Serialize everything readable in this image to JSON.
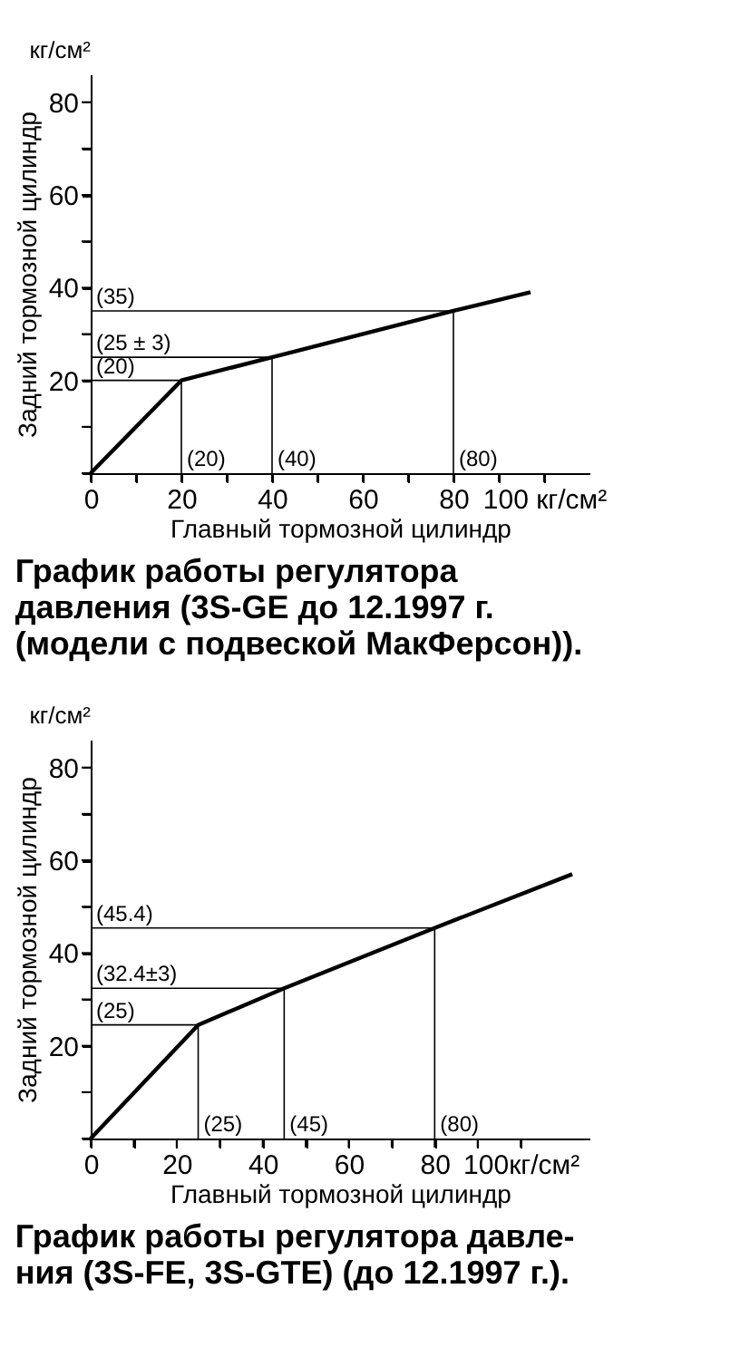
{
  "chart_data": [
    {
      "type": "line",
      "title": "График работы регулятора\nдавления (3S-GE до 12.1997 г.\n(модели с подвеской МакФерсон)).",
      "xlabel": "Главный тормозной цилиндр",
      "ylabel": "Задний тормозной цилиндр",
      "x": [
        0,
        20,
        40,
        80,
        97
      ],
      "series": [
        {
          "color": "#000000",
          "values": [
            0,
            20,
            25,
            35,
            39
          ]
        },
        {
          "color": "#000000",
          "x": [
            0,
            80,
            80
          ],
          "values": [
            35,
            35,
            0
          ]
        },
        {
          "color": "#000000",
          "x": [
            0,
            40,
            40
          ],
          "values": [
            25,
            25,
            0
          ]
        },
        {
          "color": "#000000",
          "x": [
            0,
            20,
            20
          ],
          "values": [
            20,
            20,
            0
          ]
        }
      ],
      "xlim": [
        0,
        110
      ],
      "ylim": [
        0,
        86
      ],
      "xticks": [
        0,
        {
          "value": 10,
          "label": null
        },
        20,
        {
          "value": 30,
          "label": null
        },
        40,
        {
          "value": 50,
          "label": null
        },
        60,
        {
          "value": 70,
          "label": null
        },
        80,
        {
          "value": 90,
          "label": null
        },
        {
          "value": 100,
          "label": "100 кг/см²"
        }
      ],
      "yticks": [
        {
          "value": 0,
          "label": null
        },
        {
          "value": 10,
          "label": null
        },
        20,
        {
          "value": 30,
          "label": null
        },
        40,
        {
          "value": 50,
          "label": null
        },
        60,
        {
          "value": 70,
          "label": null
        },
        80
      ],
      "annotations": [
        "кг/см²",
        {
          "text": "(35)",
          "x": 0,
          "y": 35
        },
        {
          "text": "(25 ± 3)",
          "x": 0,
          "y": 25
        },
        {
          "text": "(20)",
          "x": 0,
          "y": 20
        },
        {
          "text": "(20)",
          "x": 20,
          "y": 0
        },
        {
          "text": "(40)",
          "x": 40,
          "y": 0
        },
        {
          "text": "(80)",
          "x": 80,
          "y": 0
        }
      ],
      "grid": false,
      "marker": "none",
      "line_style": "solid"
    },
    {
      "type": "line",
      "title": "График работы регулятора давле-\nния (3S-FE, 3S-GTE) (до 12.1997 г.).",
      "xlabel": "Главный тормозной цилиндр",
      "ylabel": "Задний тормозной цилиндр",
      "x": [
        0,
        25,
        45,
        80,
        112
      ],
      "series": [
        {
          "color": "#000000",
          "values": [
            0,
            24.5,
            32.4,
            45.4,
            57
          ]
        },
        {
          "color": "#000000",
          "x": [
            0,
            80,
            80
          ],
          "values": [
            45.4,
            45.4,
            0
          ]
        },
        {
          "color": "#000000",
          "x": [
            0,
            45,
            45
          ],
          "values": [
            32.4,
            32.4,
            0
          ]
        },
        {
          "color": "#000000",
          "x": [
            0,
            25,
            25
          ],
          "values": [
            24.5,
            24.5,
            0
          ]
        }
      ],
      "xlim": [
        0,
        116
      ],
      "ylim": [
        0,
        86
      ],
      "xticks": [
        0,
        {
          "value": 10,
          "label": null
        },
        20,
        {
          "value": 30,
          "label": null
        },
        40,
        {
          "value": 50,
          "label": null
        },
        60,
        {
          "value": 70,
          "label": null
        },
        80,
        {
          "value": 90,
          "label": null
        },
        {
          "value": 100,
          "label": "100кг/см²"
        }
      ],
      "yticks": [
        {
          "value": 0,
          "label": null
        },
        {
          "value": 10,
          "label": null
        },
        20,
        {
          "value": 30,
          "label": null
        },
        40,
        {
          "value": 50,
          "label": null
        },
        60,
        {
          "value": 70,
          "label": null
        },
        80
      ],
      "annotations": [
        "кг/см²",
        {
          "text": "(45.4)",
          "x": 0,
          "y": 45.4
        },
        {
          "text": "(32.4±3)",
          "x": 0,
          "y": 32.4
        },
        {
          "text": "(25)",
          "x": 0,
          "y": 24.5
        },
        {
          "text": "(25)",
          "x": 25,
          "y": 0
        },
        {
          "text": "(45)",
          "x": 45,
          "y": 0
        },
        {
          "text": "(80)",
          "x": 80,
          "y": 0
        }
      ],
      "grid": false,
      "marker": "none",
      "line_style": "solid"
    }
  ]
}
